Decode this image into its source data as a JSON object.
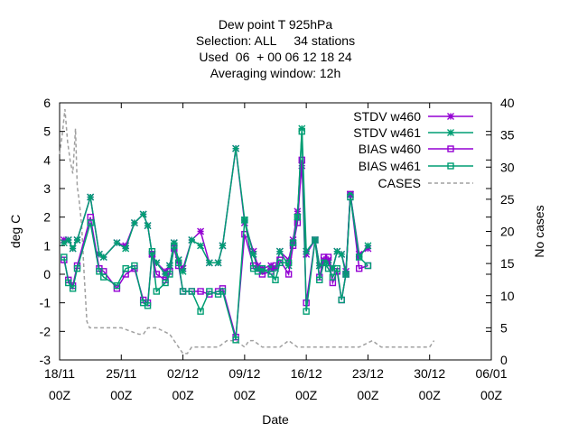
{
  "chart_data": {
    "type": "line",
    "title_lines": [
      "Dew point T 925hPa",
      "Selection: ALL     34 stations",
      "Used  06  + 00 06 12 18 24",
      "Averaging window: 12h"
    ],
    "xlabel": "Date",
    "ylabel": "deg C",
    "y2label": "No cases",
    "ylim": [
      -3,
      6
    ],
    "y2lim": [
      0,
      40
    ],
    "xlim_days": [
      0,
      49
    ],
    "y_ticks": [
      "-3",
      "-2",
      "-1",
      "0",
      "1",
      "2",
      "3",
      "4",
      "5",
      "6"
    ],
    "y2_ticks": [
      "0",
      "5",
      "10",
      "15",
      "20",
      "25",
      "30",
      "35",
      "40"
    ],
    "x_tick_labels": [
      {
        "date": "18/11",
        "hour": "00Z"
      },
      {
        "date": "25/11",
        "hour": "00Z"
      },
      {
        "date": "02/12",
        "hour": "00Z"
      },
      {
        "date": "09/12",
        "hour": "00Z"
      },
      {
        "date": "16/12",
        "hour": "00Z"
      },
      {
        "date": "23/12",
        "hour": "00Z"
      },
      {
        "date": "30/12",
        "hour": "00Z"
      },
      {
        "date": "06/01",
        "hour": "00Z"
      }
    ],
    "x_tick_days": [
      0,
      7,
      14,
      21,
      28,
      35,
      42,
      49
    ],
    "x": [
      0.5,
      1.0,
      1.5,
      2.0,
      2.5,
      3.5,
      4.5,
      5.0,
      5.5,
      6.5,
      7.5,
      8.0,
      8.5,
      9.5,
      10.0,
      10.5,
      11.0,
      12.0,
      12.5,
      13.0,
      13.5,
      14.0,
      15.0,
      15.5,
      16.0,
      16.5,
      17.0,
      18.0,
      18.5,
      19.0,
      20.0,
      21.0,
      22.0,
      22.5,
      23.0,
      24.0,
      24.5,
      25.0,
      26.0,
      26.5,
      27.0,
      27.5,
      28.0,
      29.0,
      29.5,
      30.0,
      30.5,
      31.0,
      31.5,
      32.0,
      32.5,
      33.0,
      34.0,
      35.0,
      35.5,
      36.0,
      36.5,
      37.5,
      38.0,
      39.0,
      39.5,
      40.0,
      41.0,
      41.5,
      42.0,
      42.5
    ],
    "series": [
      {
        "name": "STDV w460",
        "color": "#9400d3",
        "marker": "star",
        "values": [
          1.2,
          1.2,
          0.9,
          1.2,
          null,
          2.7,
          0.7,
          0.6,
          null,
          1.1,
          1.0,
          null,
          1.8,
          2.1,
          1.7,
          0.7,
          0.4,
          0.1,
          0.3,
          1.1,
          0.5,
          0.2,
          1.2,
          null,
          1.5,
          null,
          0.4,
          0.4,
          1.0,
          null,
          4.4,
          1.8,
          0.8,
          0.3,
          0.2,
          0.3,
          0.2,
          0.8,
          0.5,
          1.2,
          2.2,
          3.8,
          0.7,
          1.2,
          0.3,
          0.5,
          0.5,
          0.2,
          0.8,
          0.7,
          0.1,
          2.8,
          0.7,
          0.9,
          null,
          null,
          null,
          null,
          null,
          null,
          null,
          null,
          null,
          null,
          null,
          null
        ]
      },
      {
        "name": "STDV w461",
        "color": "#009e73",
        "marker": "star",
        "values": [
          1.1,
          1.2,
          0.9,
          1.2,
          null,
          2.7,
          0.7,
          0.6,
          null,
          1.1,
          0.9,
          null,
          1.8,
          2.1,
          1.7,
          0.7,
          0.4,
          0.0,
          0.3,
          1.1,
          0.5,
          0.1,
          1.2,
          null,
          1.0,
          null,
          0.4,
          0.4,
          1.0,
          null,
          4.4,
          1.9,
          0.7,
          0.2,
          0.1,
          0.2,
          0.2,
          0.8,
          0.3,
          1.1,
          2.0,
          5.1,
          0.8,
          1.2,
          0.3,
          0.4,
          0.4,
          0.2,
          0.8,
          0.7,
          0.0,
          2.8,
          0.6,
          1.0,
          null,
          null,
          null,
          null,
          null,
          null,
          null,
          null,
          null,
          null,
          null,
          null
        ]
      },
      {
        "name": "BIAS w460",
        "color": "#9400d3",
        "marker": "square",
        "values": [
          0.5,
          -0.2,
          -0.4,
          0.3,
          null,
          2.0,
          0.2,
          0.1,
          null,
          -0.5,
          0.0,
          null,
          0.2,
          -0.9,
          -1.0,
          0.7,
          0.0,
          -0.2,
          0.1,
          0.9,
          0.3,
          -0.6,
          -0.6,
          null,
          -0.6,
          null,
          -0.7,
          -0.6,
          -0.5,
          null,
          -2.2,
          1.4,
          0.3,
          0.2,
          0.0,
          0.1,
          0.3,
          0.5,
          0.0,
          1.0,
          1.8,
          4.0,
          -1.0,
          1.2,
          -0.1,
          0.6,
          0.6,
          -0.3,
          0.1,
          -0.9,
          0.0,
          2.8,
          0.2,
          0.3,
          null,
          null,
          null,
          null,
          null,
          null,
          null,
          null,
          null,
          null,
          null,
          null
        ]
      },
      {
        "name": "BIAS w461",
        "color": "#009e73",
        "marker": "square",
        "values": [
          0.6,
          -0.3,
          -0.5,
          0.2,
          null,
          1.8,
          0.1,
          -0.1,
          null,
          -0.4,
          0.2,
          null,
          0.3,
          -1.0,
          -1.1,
          0.8,
          -0.6,
          -0.3,
          0.0,
          1.0,
          0.4,
          -0.6,
          -0.6,
          null,
          -1.3,
          null,
          -0.6,
          -0.7,
          -0.6,
          null,
          -2.3,
          1.9,
          0.2,
          0.1,
          0.2,
          0.0,
          -0.2,
          0.4,
          0.4,
          1.1,
          2.0,
          5.0,
          -1.3,
          1.2,
          -0.2,
          0.4,
          0.2,
          -0.1,
          0.2,
          -0.9,
          0.0,
          2.7,
          0.6,
          0.3,
          null,
          null,
          null,
          null,
          null,
          null,
          null,
          null,
          null,
          null,
          null,
          null
        ]
      }
    ],
    "cases": {
      "name": "CASES",
      "color": "#a0a0a0",
      "x": [
        0.0,
        0.3,
        0.6,
        0.9,
        1.2,
        1.5,
        1.8,
        2.0,
        2.2,
        2.5,
        2.8,
        3.1,
        3.4,
        3.7,
        4.0,
        4.5,
        5.0,
        7.0,
        9.0,
        9.5,
        10.0,
        11.0,
        12.5,
        13.0,
        14.0,
        14.5,
        15.0,
        16.0,
        17.0,
        18.0,
        19.0,
        19.5,
        20.0,
        21.0,
        21.5,
        22.0,
        23.0,
        25.0,
        26.0,
        27.0,
        28.0,
        30.0,
        32.0,
        34.0,
        35.5,
        36.5,
        37.0,
        38.0,
        40.0,
        41.0,
        42.0,
        42.5
      ],
      "values": [
        32,
        35,
        39,
        34,
        31,
        29,
        36,
        27,
        25,
        21,
        13,
        6,
        5,
        5,
        5,
        5,
        5,
        5,
        4,
        4,
        5,
        5,
        4,
        3,
        1,
        1,
        2,
        2,
        2,
        2,
        3,
        3,
        3,
        2,
        3,
        3,
        2,
        2,
        3,
        2,
        2,
        2,
        2,
        2,
        3,
        2,
        2,
        2,
        2,
        2,
        2,
        3
      ]
    },
    "legend": {
      "placement": "top-right",
      "entries": [
        "STDV w460",
        "STDV w461",
        "BIAS w460",
        "BIAS w461",
        "CASES"
      ]
    }
  }
}
